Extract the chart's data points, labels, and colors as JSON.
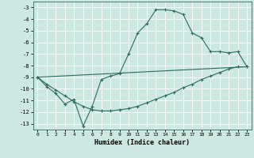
{
  "xlabel": "Humidex (Indice chaleur)",
  "xlim": [
    -0.5,
    23.5
  ],
  "ylim": [
    -13.5,
    -2.5
  ],
  "yticks": [
    -13,
    -12,
    -11,
    -10,
    -9,
    -8,
    -7,
    -6,
    -5,
    -4,
    -3
  ],
  "xticks": [
    0,
    1,
    2,
    3,
    4,
    5,
    6,
    7,
    8,
    9,
    10,
    11,
    12,
    13,
    14,
    15,
    16,
    17,
    18,
    19,
    20,
    21,
    22,
    23
  ],
  "bg_color": "#cce8e0",
  "line_color": "#2e6b5e",
  "grid_color": "#b0d8d0",
  "line1_x": [
    0,
    1,
    2,
    3,
    4,
    5,
    6,
    7,
    8,
    9,
    10,
    11,
    12,
    13,
    14,
    15,
    16,
    17,
    18,
    19,
    20,
    21,
    22,
    23
  ],
  "line1_y": [
    -9.0,
    -9.8,
    -10.4,
    -11.3,
    -10.9,
    -13.2,
    -11.5,
    -9.2,
    -8.9,
    -8.7,
    -7.0,
    -5.2,
    -4.4,
    -3.2,
    -3.2,
    -3.3,
    -3.6,
    -5.2,
    -5.6,
    -6.8,
    -6.8,
    -6.9,
    -6.8,
    -8.1
  ],
  "line2_x": [
    0,
    1,
    2,
    3,
    4,
    5,
    6,
    7,
    8,
    9,
    10,
    11,
    12,
    13,
    14,
    15,
    16,
    17,
    18,
    19,
    20,
    21,
    22,
    23
  ],
  "line2_y": [
    -9.0,
    -9.6,
    -10.1,
    -10.6,
    -11.1,
    -11.5,
    -11.8,
    -11.9,
    -11.9,
    -11.8,
    -11.7,
    -11.5,
    -11.2,
    -10.9,
    -10.6,
    -10.3,
    -9.9,
    -9.6,
    -9.2,
    -8.9,
    -8.6,
    -8.3,
    -8.1,
    -8.1
  ],
  "line3_x": [
    0,
    23
  ],
  "line3_y": [
    -9.0,
    -8.1
  ]
}
